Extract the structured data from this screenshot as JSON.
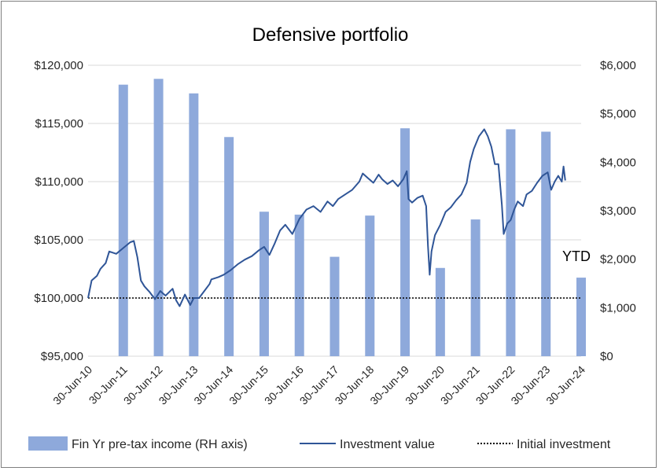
{
  "chart_data": {
    "type": "bar+line",
    "title": "Defensive portfolio",
    "annotation": "YTD",
    "colors": {
      "bars": "#8EA9DB",
      "line": "#2F5597",
      "initial": "#000000",
      "grid": "#d9d9d9"
    },
    "left_axis": {
      "min": 95000,
      "max": 120000,
      "step": 5000,
      "ticks": [
        "$95,000",
        "$100,000",
        "$105,000",
        "$110,000",
        "$115,000",
        "$120,000"
      ]
    },
    "right_axis": {
      "min": 0,
      "max": 6000,
      "step": 1000,
      "ticks": [
        "$0",
        "$1,000",
        "$2,000",
        "$3,000",
        "$4,000",
        "$5,000",
        "$6,000"
      ]
    },
    "x_axis": {
      "start": 2010.5,
      "end": 2024.5,
      "ticks": [
        "30-Jun-10",
        "30-Jun-11",
        "30-Jun-12",
        "30-Jun-13",
        "30-Jun-14",
        "30-Jun-15",
        "30-Jun-16",
        "30-Jun-17",
        "30-Jun-18",
        "30-Jun-19",
        "30-Jun-20",
        "30-Jun-21",
        "30-Jun-22",
        "30-Jun-23",
        "30-Jun-24"
      ]
    },
    "series": [
      {
        "name": "Fin Yr pre-tax income (RH axis)",
        "type": "bar",
        "axis": "right",
        "categories": [
          "30-Jun-11",
          "30-Jun-12",
          "30-Jun-13",
          "30-Jun-14",
          "30-Jun-15",
          "30-Jun-16",
          "30-Jun-17",
          "30-Jun-18",
          "30-Jun-19",
          "30-Jun-20",
          "30-Jun-21",
          "30-Jun-22",
          "30-Jun-23",
          "30-Jun-24"
        ],
        "values": [
          5600,
          5720,
          5420,
          4520,
          2980,
          2920,
          2050,
          2900,
          4700,
          1820,
          2820,
          4680,
          4630,
          1620
        ]
      },
      {
        "name": "Investment value",
        "type": "line",
        "axis": "left",
        "points": [
          [
            2010.5,
            100000
          ],
          [
            2010.6,
            101500
          ],
          [
            2010.75,
            101900
          ],
          [
            2010.85,
            102500
          ],
          [
            2011.0,
            103000
          ],
          [
            2011.1,
            104000
          ],
          [
            2011.3,
            103800
          ],
          [
            2011.5,
            104300
          ],
          [
            2011.7,
            104800
          ],
          [
            2011.8,
            104900
          ],
          [
            2011.9,
            103500
          ],
          [
            2012.0,
            101500
          ],
          [
            2012.1,
            101000
          ],
          [
            2012.25,
            100500
          ],
          [
            2012.4,
            99900
          ],
          [
            2012.55,
            100600
          ],
          [
            2012.7,
            100200
          ],
          [
            2012.9,
            100800
          ],
          [
            2013.0,
            99800
          ],
          [
            2013.1,
            99300
          ],
          [
            2013.25,
            100300
          ],
          [
            2013.4,
            99400
          ],
          [
            2013.5,
            100000
          ],
          [
            2013.65,
            100000
          ],
          [
            2013.8,
            100600
          ],
          [
            2013.95,
            101200
          ],
          [
            2014.0,
            101600
          ],
          [
            2014.2,
            101800
          ],
          [
            2014.35,
            102000
          ],
          [
            2014.55,
            102400
          ],
          [
            2014.75,
            102900
          ],
          [
            2014.95,
            103300
          ],
          [
            2015.15,
            103600
          ],
          [
            2015.35,
            104100
          ],
          [
            2015.5,
            104400
          ],
          [
            2015.65,
            103700
          ],
          [
            2015.8,
            104700
          ],
          [
            2015.95,
            105800
          ],
          [
            2016.1,
            106300
          ],
          [
            2016.3,
            105500
          ],
          [
            2016.5,
            106800
          ],
          [
            2016.7,
            107600
          ],
          [
            2016.9,
            107900
          ],
          [
            2017.1,
            107400
          ],
          [
            2017.3,
            108300
          ],
          [
            2017.45,
            107900
          ],
          [
            2017.6,
            108500
          ],
          [
            2017.8,
            108900
          ],
          [
            2018.0,
            109300
          ],
          [
            2018.2,
            110000
          ],
          [
            2018.3,
            110700
          ],
          [
            2018.45,
            110300
          ],
          [
            2018.6,
            109900
          ],
          [
            2018.75,
            110600
          ],
          [
            2018.85,
            110200
          ],
          [
            2019.0,
            109800
          ],
          [
            2019.15,
            110100
          ],
          [
            2019.3,
            109600
          ],
          [
            2019.45,
            110200
          ],
          [
            2019.55,
            110900
          ],
          [
            2019.6,
            108500
          ],
          [
            2019.7,
            108200
          ],
          [
            2019.85,
            108600
          ],
          [
            2020.0,
            108800
          ],
          [
            2020.1,
            107900
          ],
          [
            2020.15,
            104500
          ],
          [
            2020.2,
            102000
          ],
          [
            2020.25,
            104000
          ],
          [
            2020.35,
            105400
          ],
          [
            2020.5,
            106300
          ],
          [
            2020.65,
            107400
          ],
          [
            2020.8,
            107800
          ],
          [
            2020.95,
            108400
          ],
          [
            2021.1,
            108900
          ],
          [
            2021.25,
            109900
          ],
          [
            2021.35,
            111700
          ],
          [
            2021.45,
            112800
          ],
          [
            2021.6,
            113900
          ],
          [
            2021.75,
            114500
          ],
          [
            2021.85,
            113900
          ],
          [
            2021.95,
            113000
          ],
          [
            2022.05,
            111500
          ],
          [
            2022.15,
            111500
          ],
          [
            2022.25,
            108000
          ],
          [
            2022.3,
            105500
          ],
          [
            2022.4,
            106400
          ],
          [
            2022.5,
            106700
          ],
          [
            2022.6,
            107600
          ],
          [
            2022.7,
            108300
          ],
          [
            2022.85,
            107900
          ],
          [
            2022.95,
            108900
          ],
          [
            2023.1,
            109200
          ],
          [
            2023.25,
            109900
          ],
          [
            2023.4,
            110500
          ],
          [
            2023.55,
            110800
          ],
          [
            2023.65,
            109300
          ],
          [
            2023.75,
            110000
          ],
          [
            2023.85,
            110500
          ],
          [
            2023.95,
            110000
          ],
          [
            2024.0,
            111300
          ],
          [
            2024.05,
            110100
          ]
        ]
      },
      {
        "name": "Initial investment",
        "type": "line",
        "axis": "left",
        "style": "dotted",
        "value": 100000
      }
    ]
  }
}
